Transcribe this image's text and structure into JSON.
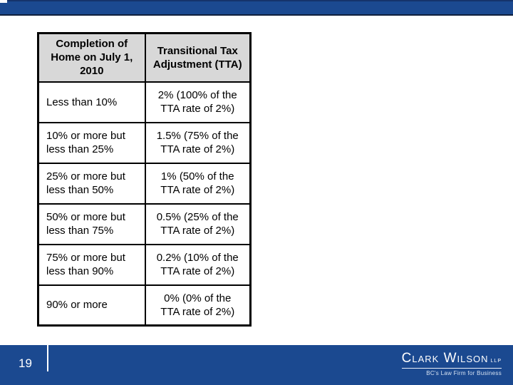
{
  "table": {
    "headers": [
      "Completion of\nHome on July 1,\n2010",
      "Transitional Tax\nAdjustment (TTA)"
    ],
    "rows": [
      {
        "completion": "Less than 10%",
        "tta": "2% (100% of the\nTTA rate of 2%)"
      },
      {
        "completion": "10% or more but\nless than 25%",
        "tta": "1.5% (75% of the\nTTA rate of 2%)"
      },
      {
        "completion": "25% or more but\nless than 50%",
        "tta": "1% (50% of the\nTTA rate of 2%)"
      },
      {
        "completion": "50% or more but\nless than 75%",
        "tta": "0.5% (25% of the\nTTA rate of 2%)"
      },
      {
        "completion": "75% or more but\nless than 90%",
        "tta": "0.2% (10% of the\nTTA rate of 2%)"
      },
      {
        "completion": "90% or more",
        "tta": "0% (0% of the\nTTA rate of 2%)"
      }
    ]
  },
  "footer": {
    "page_number": "19",
    "logo": {
      "name": "Clark Wilson",
      "suffix": "LLP",
      "tagline": "BC's Law Firm for Business"
    }
  },
  "colors": {
    "banner_blue": "#1b4990",
    "banner_edge_dark": "#10203d",
    "table_header_gray": "#d8d8d8",
    "table_border": "#000000",
    "text_black": "#000000",
    "text_white": "#ffffff"
  }
}
